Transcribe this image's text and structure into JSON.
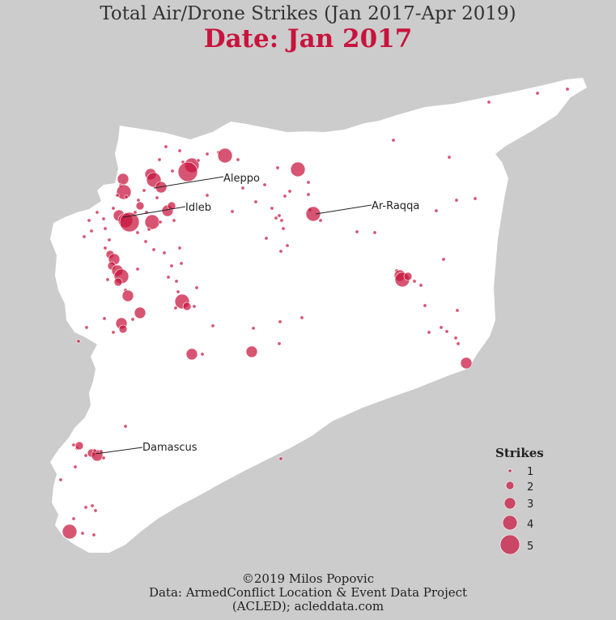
{
  "title": "Total Air/Drone Strikes (Jan 2017-Apr 2019)",
  "subtitle": "Date: Jan 2017",
  "credit": {
    "line1": "©2019 Milos Popovic",
    "line2": "Data: ArmedConflict Location & Event Data Project",
    "line3": "(ACLED); acleddata.com"
  },
  "colors": {
    "background": "#cccccc",
    "land": "#ffffff",
    "marker": "#c8143c",
    "title_accent": "#c8143c"
  },
  "cities": {
    "aleppo": "Aleppo",
    "idleb": "Idleb",
    "raqqa": "Ar-Raqqa",
    "damascus": "Damascus"
  },
  "legend": {
    "title": "Strikes",
    "items": [
      {
        "label": "1",
        "value": 1
      },
      {
        "label": "2",
        "value": 2
      },
      {
        "label": "3",
        "value": 3
      },
      {
        "label": "4",
        "value": 4
      },
      {
        "label": "5",
        "value": 5
      }
    ]
  }
}
